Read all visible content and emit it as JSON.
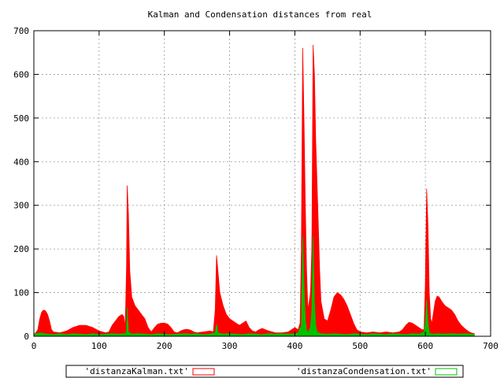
{
  "chart_data": {
    "type": "area",
    "title": "Kalman and Condensation distances from real",
    "xlabel": "",
    "ylabel": "",
    "xlim": [
      0,
      700
    ],
    "ylim": [
      0,
      700
    ],
    "xticks": [
      0,
      100,
      200,
      300,
      400,
      500,
      600,
      700
    ],
    "yticks": [
      0,
      100,
      200,
      300,
      400,
      500,
      600,
      700
    ],
    "grid": true,
    "legend_position": "bottom",
    "series": [
      {
        "name": "'distanzaKalman.txt'",
        "color": "#ff0000",
        "points": [
          [
            0,
            5
          ],
          [
            3,
            8
          ],
          [
            6,
            15
          ],
          [
            9,
            40
          ],
          [
            12,
            55
          ],
          [
            15,
            60
          ],
          [
            18,
            58
          ],
          [
            21,
            50
          ],
          [
            24,
            35
          ],
          [
            27,
            15
          ],
          [
            30,
            10
          ],
          [
            40,
            8
          ],
          [
            50,
            12
          ],
          [
            60,
            20
          ],
          [
            70,
            25
          ],
          [
            80,
            25
          ],
          [
            90,
            20
          ],
          [
            100,
            12
          ],
          [
            110,
            8
          ],
          [
            115,
            10
          ],
          [
            120,
            25
          ],
          [
            125,
            35
          ],
          [
            130,
            45
          ],
          [
            135,
            50
          ],
          [
            138,
            45
          ],
          [
            140,
            20
          ],
          [
            142,
            160
          ],
          [
            143,
            345
          ],
          [
            145,
            280
          ],
          [
            147,
            150
          ],
          [
            150,
            90
          ],
          [
            155,
            70
          ],
          [
            160,
            60
          ],
          [
            165,
            50
          ],
          [
            170,
            40
          ],
          [
            175,
            20
          ],
          [
            180,
            10
          ],
          [
            185,
            20
          ],
          [
            190,
            28
          ],
          [
            195,
            30
          ],
          [
            200,
            30
          ],
          [
            205,
            28
          ],
          [
            210,
            20
          ],
          [
            215,
            10
          ],
          [
            220,
            8
          ],
          [
            225,
            12
          ],
          [
            230,
            15
          ],
          [
            235,
            16
          ],
          [
            240,
            14
          ],
          [
            245,
            10
          ],
          [
            250,
            8
          ],
          [
            260,
            10
          ],
          [
            270,
            12
          ],
          [
            275,
            10
          ],
          [
            278,
            60
          ],
          [
            280,
            185
          ],
          [
            282,
            150
          ],
          [
            285,
            100
          ],
          [
            290,
            70
          ],
          [
            295,
            50
          ],
          [
            300,
            40
          ],
          [
            305,
            35
          ],
          [
            310,
            30
          ],
          [
            315,
            25
          ],
          [
            320,
            30
          ],
          [
            325,
            35
          ],
          [
            330,
            20
          ],
          [
            335,
            12
          ],
          [
            340,
            10
          ],
          [
            345,
            15
          ],
          [
            350,
            18
          ],
          [
            355,
            15
          ],
          [
            360,
            12
          ],
          [
            370,
            8
          ],
          [
            380,
            8
          ],
          [
            390,
            10
          ],
          [
            395,
            15
          ],
          [
            400,
            20
          ],
          [
            405,
            15
          ],
          [
            408,
            30
          ],
          [
            410,
            200
          ],
          [
            412,
            660
          ],
          [
            414,
            500
          ],
          [
            416,
            300
          ],
          [
            418,
            150
          ],
          [
            420,
            60
          ],
          [
            422,
            80
          ],
          [
            424,
            100
          ],
          [
            426,
            200
          ],
          [
            428,
            667
          ],
          [
            430,
            600
          ],
          [
            432,
            450
          ],
          [
            434,
            350
          ],
          [
            436,
            250
          ],
          [
            438,
            150
          ],
          [
            440,
            80
          ],
          [
            445,
            40
          ],
          [
            450,
            35
          ],
          [
            455,
            60
          ],
          [
            460,
            90
          ],
          [
            465,
            100
          ],
          [
            470,
            95
          ],
          [
            475,
            85
          ],
          [
            480,
            70
          ],
          [
            485,
            50
          ],
          [
            490,
            30
          ],
          [
            495,
            15
          ],
          [
            500,
            10
          ],
          [
            510,
            8
          ],
          [
            520,
            10
          ],
          [
            530,
            8
          ],
          [
            540,
            10
          ],
          [
            550,
            8
          ],
          [
            560,
            10
          ],
          [
            565,
            15
          ],
          [
            570,
            25
          ],
          [
            575,
            32
          ],
          [
            580,
            30
          ],
          [
            585,
            25
          ],
          [
            590,
            20
          ],
          [
            595,
            15
          ],
          [
            598,
            15
          ],
          [
            600,
            120
          ],
          [
            602,
            337
          ],
          [
            604,
            250
          ],
          [
            606,
            100
          ],
          [
            608,
            40
          ],
          [
            610,
            30
          ],
          [
            612,
            50
          ],
          [
            615,
            80
          ],
          [
            618,
            92
          ],
          [
            621,
            90
          ],
          [
            625,
            80
          ],
          [
            630,
            70
          ],
          [
            635,
            65
          ],
          [
            640,
            60
          ],
          [
            645,
            50
          ],
          [
            650,
            35
          ],
          [
            655,
            25
          ],
          [
            660,
            18
          ],
          [
            665,
            12
          ],
          [
            670,
            8
          ],
          [
            675,
            6
          ]
        ]
      },
      {
        "name": "'distanzaCondensation.txt'",
        "color": "#00c000",
        "points": [
          [
            0,
            5
          ],
          [
            10,
            8
          ],
          [
            20,
            5
          ],
          [
            30,
            4
          ],
          [
            40,
            6
          ],
          [
            50,
            4
          ],
          [
            60,
            6
          ],
          [
            70,
            5
          ],
          [
            80,
            4
          ],
          [
            90,
            6
          ],
          [
            100,
            4
          ],
          [
            110,
            5
          ],
          [
            120,
            6
          ],
          [
            130,
            5
          ],
          [
            140,
            6
          ],
          [
            142,
            10
          ],
          [
            143,
            65
          ],
          [
            145,
            10
          ],
          [
            150,
            5
          ],
          [
            160,
            6
          ],
          [
            170,
            5
          ],
          [
            180,
            4
          ],
          [
            190,
            6
          ],
          [
            200,
            5
          ],
          [
            210,
            4
          ],
          [
            220,
            5
          ],
          [
            230,
            6
          ],
          [
            240,
            5
          ],
          [
            250,
            6
          ],
          [
            260,
            4
          ],
          [
            270,
            5
          ],
          [
            278,
            8
          ],
          [
            280,
            28
          ],
          [
            282,
            8
          ],
          [
            290,
            5
          ],
          [
            300,
            6
          ],
          [
            310,
            5
          ],
          [
            320,
            4
          ],
          [
            330,
            6
          ],
          [
            340,
            5
          ],
          [
            350,
            4
          ],
          [
            360,
            6
          ],
          [
            370,
            5
          ],
          [
            380,
            6
          ],
          [
            390,
            5
          ],
          [
            400,
            6
          ],
          [
            405,
            8
          ],
          [
            408,
            20
          ],
          [
            410,
            20
          ],
          [
            412,
            228
          ],
          [
            414,
            120
          ],
          [
            416,
            40
          ],
          [
            418,
            15
          ],
          [
            420,
            8
          ],
          [
            424,
            20
          ],
          [
            426,
            60
          ],
          [
            428,
            228
          ],
          [
            430,
            80
          ],
          [
            432,
            25
          ],
          [
            434,
            10
          ],
          [
            440,
            6
          ],
          [
            450,
            5
          ],
          [
            460,
            6
          ],
          [
            470,
            5
          ],
          [
            480,
            4
          ],
          [
            490,
            6
          ],
          [
            500,
            5
          ],
          [
            510,
            4
          ],
          [
            520,
            6
          ],
          [
            530,
            5
          ],
          [
            540,
            4
          ],
          [
            550,
            6
          ],
          [
            560,
            5
          ],
          [
            570,
            4
          ],
          [
            580,
            6
          ],
          [
            590,
            5
          ],
          [
            598,
            10
          ],
          [
            600,
            30
          ],
          [
            602,
            83
          ],
          [
            604,
            30
          ],
          [
            606,
            8
          ],
          [
            610,
            5
          ],
          [
            620,
            6
          ],
          [
            630,
            5
          ],
          [
            640,
            6
          ],
          [
            650,
            5
          ],
          [
            660,
            6
          ],
          [
            670,
            5
          ],
          [
            675,
            4
          ]
        ]
      }
    ]
  }
}
